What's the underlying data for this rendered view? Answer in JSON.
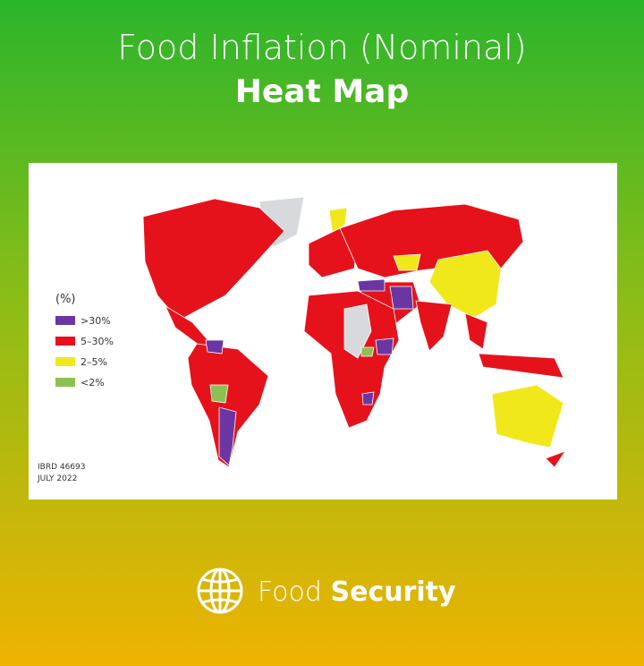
{
  "header": {
    "title": "Food Inflation (Nominal)",
    "subtitle": "Heat Map"
  },
  "map": {
    "legend": {
      "title": "(%)",
      "items": [
        {
          "label": ">30%",
          "color": "#6b36a3"
        },
        {
          "label": "5–30%",
          "color": "#e5121c"
        },
        {
          "label": "2–5%",
          "color": "#f1e81c"
        },
        {
          "label": "<2%",
          "color": "#8cc152"
        }
      ]
    },
    "no_data_color": "#d8d9dd",
    "note": [
      "IBRD 46693",
      "JULY 2022"
    ]
  },
  "footer": {
    "brand_light": "Food",
    "brand_bold": "Security"
  }
}
